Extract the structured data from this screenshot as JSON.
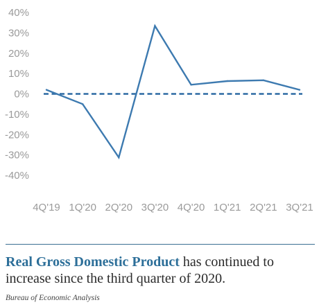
{
  "chart_data": {
    "type": "line",
    "categories": [
      "4Q'19",
      "1Q'20",
      "2Q'20",
      "3Q'20",
      "4Q'20",
      "1Q'21",
      "2Q'21",
      "3Q'21"
    ],
    "series": [
      {
        "values": [
          2.0,
          -5.0,
          -31.2,
          33.4,
          4.5,
          6.3,
          6.7,
          2.0
        ],
        "color": "#3d7ab0",
        "style": "solid"
      }
    ],
    "reference_line": {
      "y": 0,
      "style": "dashed",
      "color": "#2d6aa3"
    },
    "yticks": [
      "40%",
      "30%",
      "20%",
      "10%",
      "0%",
      "-10%",
      "-20%",
      "-30%",
      "-40%"
    ],
    "ylim": [
      -40,
      40
    ],
    "grid": false,
    "title": "",
    "xlabel": "",
    "ylabel": ""
  },
  "caption": {
    "highlight": "Real Gross Domestic Product",
    "rest": " has continued to increase since the third quarter of 2020."
  },
  "source": "Bureau of Economic Analysis"
}
